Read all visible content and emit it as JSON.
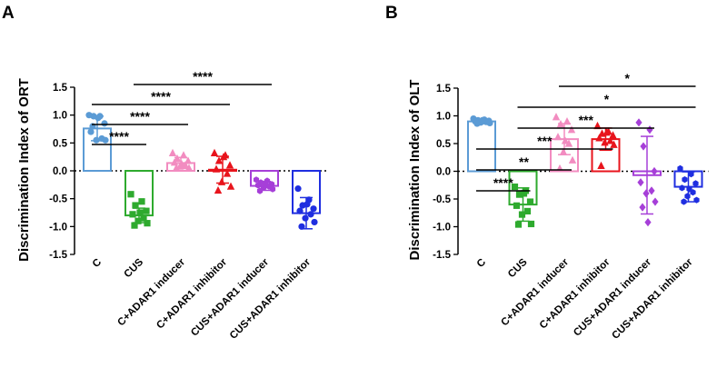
{
  "chart_data": [
    {
      "panel_label": "A",
      "type": "bar",
      "ylabel": "Discrimination Index of ORT",
      "ylim": [
        -1.5,
        1.5
      ],
      "yticks": [
        "1.5",
        "1.0",
        "0.5",
        "0.0",
        "-0.5",
        "-1.0",
        "-1.5"
      ],
      "ytick_values": [
        1.5,
        1.0,
        0.5,
        0.0,
        -0.5,
        -1.0,
        -1.5
      ],
      "categories": [
        "C",
        "CUS",
        "C+ADAR1 inducer",
        "C+ADAR1 inhibitor",
        "CUS+ADAR1 inducer",
        "CUS+ADAR1 inhibitor"
      ],
      "colors": [
        "#5b9bd5",
        "#2eaa2e",
        "#f28cc0",
        "#e8141c",
        "#a63fd8",
        "#1f2ee0"
      ],
      "markers": [
        "circle",
        "square",
        "triangle",
        "triangle",
        "hexagon",
        "circle"
      ],
      "means": [
        0.76,
        -0.8,
        0.14,
        0.02,
        -0.27,
        -0.76
      ],
      "sd": [
        0.22,
        0.13,
        0.1,
        0.24,
        0.08,
        0.28
      ],
      "points": [
        [
          1.0,
          0.98,
          0.98,
          0.85,
          0.7,
          0.58,
          0.55,
          0.55,
          0.8,
          0.95
        ],
        [
          -0.42,
          -0.55,
          -0.62,
          -0.72,
          -0.78,
          -0.85,
          -0.9,
          -0.94,
          -0.98,
          -0.75
        ],
        [
          0.32,
          0.28,
          0.22,
          0.18,
          0.15,
          0.1,
          0.08,
          0.05,
          0.05,
          0.12
        ],
        [
          0.32,
          0.28,
          0.18,
          0.1,
          0.03,
          -0.05,
          -0.2,
          -0.28,
          -0.35,
          0.25
        ],
        [
          -0.16,
          -0.18,
          -0.21,
          -0.24,
          -0.26,
          -0.28,
          -0.3,
          -0.33,
          -0.36,
          -0.22
        ],
        [
          -0.32,
          -0.52,
          -0.62,
          -0.68,
          -0.72,
          -0.78,
          -0.85,
          -0.92,
          -1.0,
          -0.6
        ]
      ],
      "significance": [
        {
          "from": 0,
          "to": 1,
          "label": "****"
        },
        {
          "from": 0,
          "to": 2,
          "label": "****"
        },
        {
          "from": 0,
          "to": 3,
          "label": "****"
        },
        {
          "from": 1,
          "to": 4,
          "label": "****"
        }
      ]
    },
    {
      "panel_label": "B",
      "type": "bar",
      "ylabel": "Discrimination Index of OLT",
      "ylim": [
        -1.5,
        1.5
      ],
      "yticks": [
        "1.5",
        "1.0",
        "0.5",
        "0.0",
        "-0.5",
        "-1.0",
        "-1.5"
      ],
      "ytick_values": [
        1.5,
        1.0,
        0.5,
        0.0,
        -0.5,
        -1.0,
        -1.5
      ],
      "categories": [
        "C",
        "CUS",
        "C+ADAR1 inducer",
        "C+ADAR1 inhibitor",
        "CUS+ADAR1 inducer",
        "CUS+ADAR1 inhibitor"
      ],
      "colors": [
        "#5b9bd5",
        "#2eaa2e",
        "#f28cc0",
        "#e8141c",
        "#a63fd8",
        "#1f2ee0"
      ],
      "markers": [
        "circle",
        "square",
        "triangle",
        "triangle",
        "diamond",
        "hexagon"
      ],
      "means": [
        0.9,
        -0.6,
        0.58,
        0.58,
        -0.07,
        -0.28
      ],
      "sd": [
        0.04,
        0.3,
        0.28,
        0.2,
        0.7,
        0.27
      ],
      "points": [
        [
          0.95,
          0.93,
          0.92,
          0.91,
          0.9,
          0.89,
          0.88,
          0.87,
          0.86,
          0.92
        ],
        [
          -0.28,
          -0.35,
          -0.42,
          -0.55,
          -0.62,
          -0.72,
          -0.78,
          -0.95,
          -0.96,
          -0.4
        ],
        [
          0.98,
          0.9,
          0.85,
          0.75,
          0.62,
          0.5,
          0.35,
          0.2,
          0.05,
          0.55
        ],
        [
          0.82,
          0.72,
          0.68,
          0.65,
          0.6,
          0.55,
          0.52,
          0.48,
          0.1,
          0.7
        ],
        [
          0.88,
          0.75,
          0.45,
          0.0,
          -0.2,
          -0.35,
          -0.4,
          -0.55,
          -0.65,
          -0.92
        ],
        [
          0.05,
          -0.05,
          -0.15,
          -0.22,
          -0.3,
          -0.38,
          -0.45,
          -0.52,
          -0.55,
          -0.32
        ]
      ],
      "significance": [
        {
          "from": 0,
          "to": 1,
          "label": "****"
        },
        {
          "from": 0,
          "to": 2,
          "label": "**"
        },
        {
          "from": 0,
          "to": 3,
          "label": "***"
        },
        {
          "from": 1,
          "to": 4,
          "label": "***"
        },
        {
          "from": 1,
          "to": 5,
          "label": "*"
        },
        {
          "from": 2,
          "to": 5,
          "label": "*"
        }
      ]
    }
  ]
}
